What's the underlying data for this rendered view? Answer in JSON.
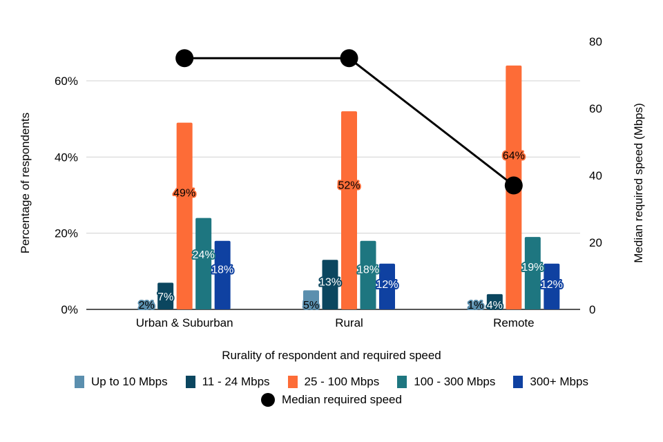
{
  "chart_data": {
    "type": "bar",
    "title": "",
    "xlabel": "Rurality of respondent and required speed",
    "ylabel": "Percentage of respondents",
    "y2label": "Median required speed (Mbps)",
    "categories": [
      "Urban & Suburban",
      "Rural",
      "Remote"
    ],
    "ylim": [
      0,
      60
    ],
    "yticks": [
      "0%",
      "20%",
      "40%",
      "60%"
    ],
    "y2lim": [
      0,
      80
    ],
    "y2ticks": [
      "0",
      "20",
      "40",
      "60",
      "80"
    ],
    "grid": true,
    "legend_position": "bottom",
    "series": [
      {
        "name": "Up to 10 Mbps",
        "color": "#5b8fae",
        "label_color": "#000000",
        "values": [
          2,
          5,
          1
        ],
        "labels": [
          "2%",
          "5%",
          "1%"
        ]
      },
      {
        "name": "11 - 24 Mbps",
        "color": "#0b465f",
        "label_color": "#ffffff",
        "values": [
          7,
          13,
          4
        ],
        "labels": [
          "7%",
          "13%",
          "4%"
        ]
      },
      {
        "name": "25 - 100 Mbps",
        "color": "#fd6c37",
        "label_color": "#000000",
        "values": [
          49,
          52,
          64
        ],
        "labels": [
          "49%",
          "52%",
          "64%"
        ]
      },
      {
        "name": "100 - 300 Mbps",
        "color": "#1e7680",
        "label_color": "#ffffff",
        "values": [
          24,
          18,
          19
        ],
        "labels": [
          "24%",
          "18%",
          "19%"
        ]
      },
      {
        "name": "300+ Mbps",
        "color": "#0f41a1",
        "label_color": "#ffffff",
        "values": [
          18,
          12,
          12
        ],
        "labels": [
          "18%",
          "12%",
          "12%"
        ]
      }
    ],
    "line_series": {
      "name": "Median required speed",
      "color": "#000000",
      "axis": "right",
      "values": [
        75,
        75,
        37
      ]
    }
  }
}
